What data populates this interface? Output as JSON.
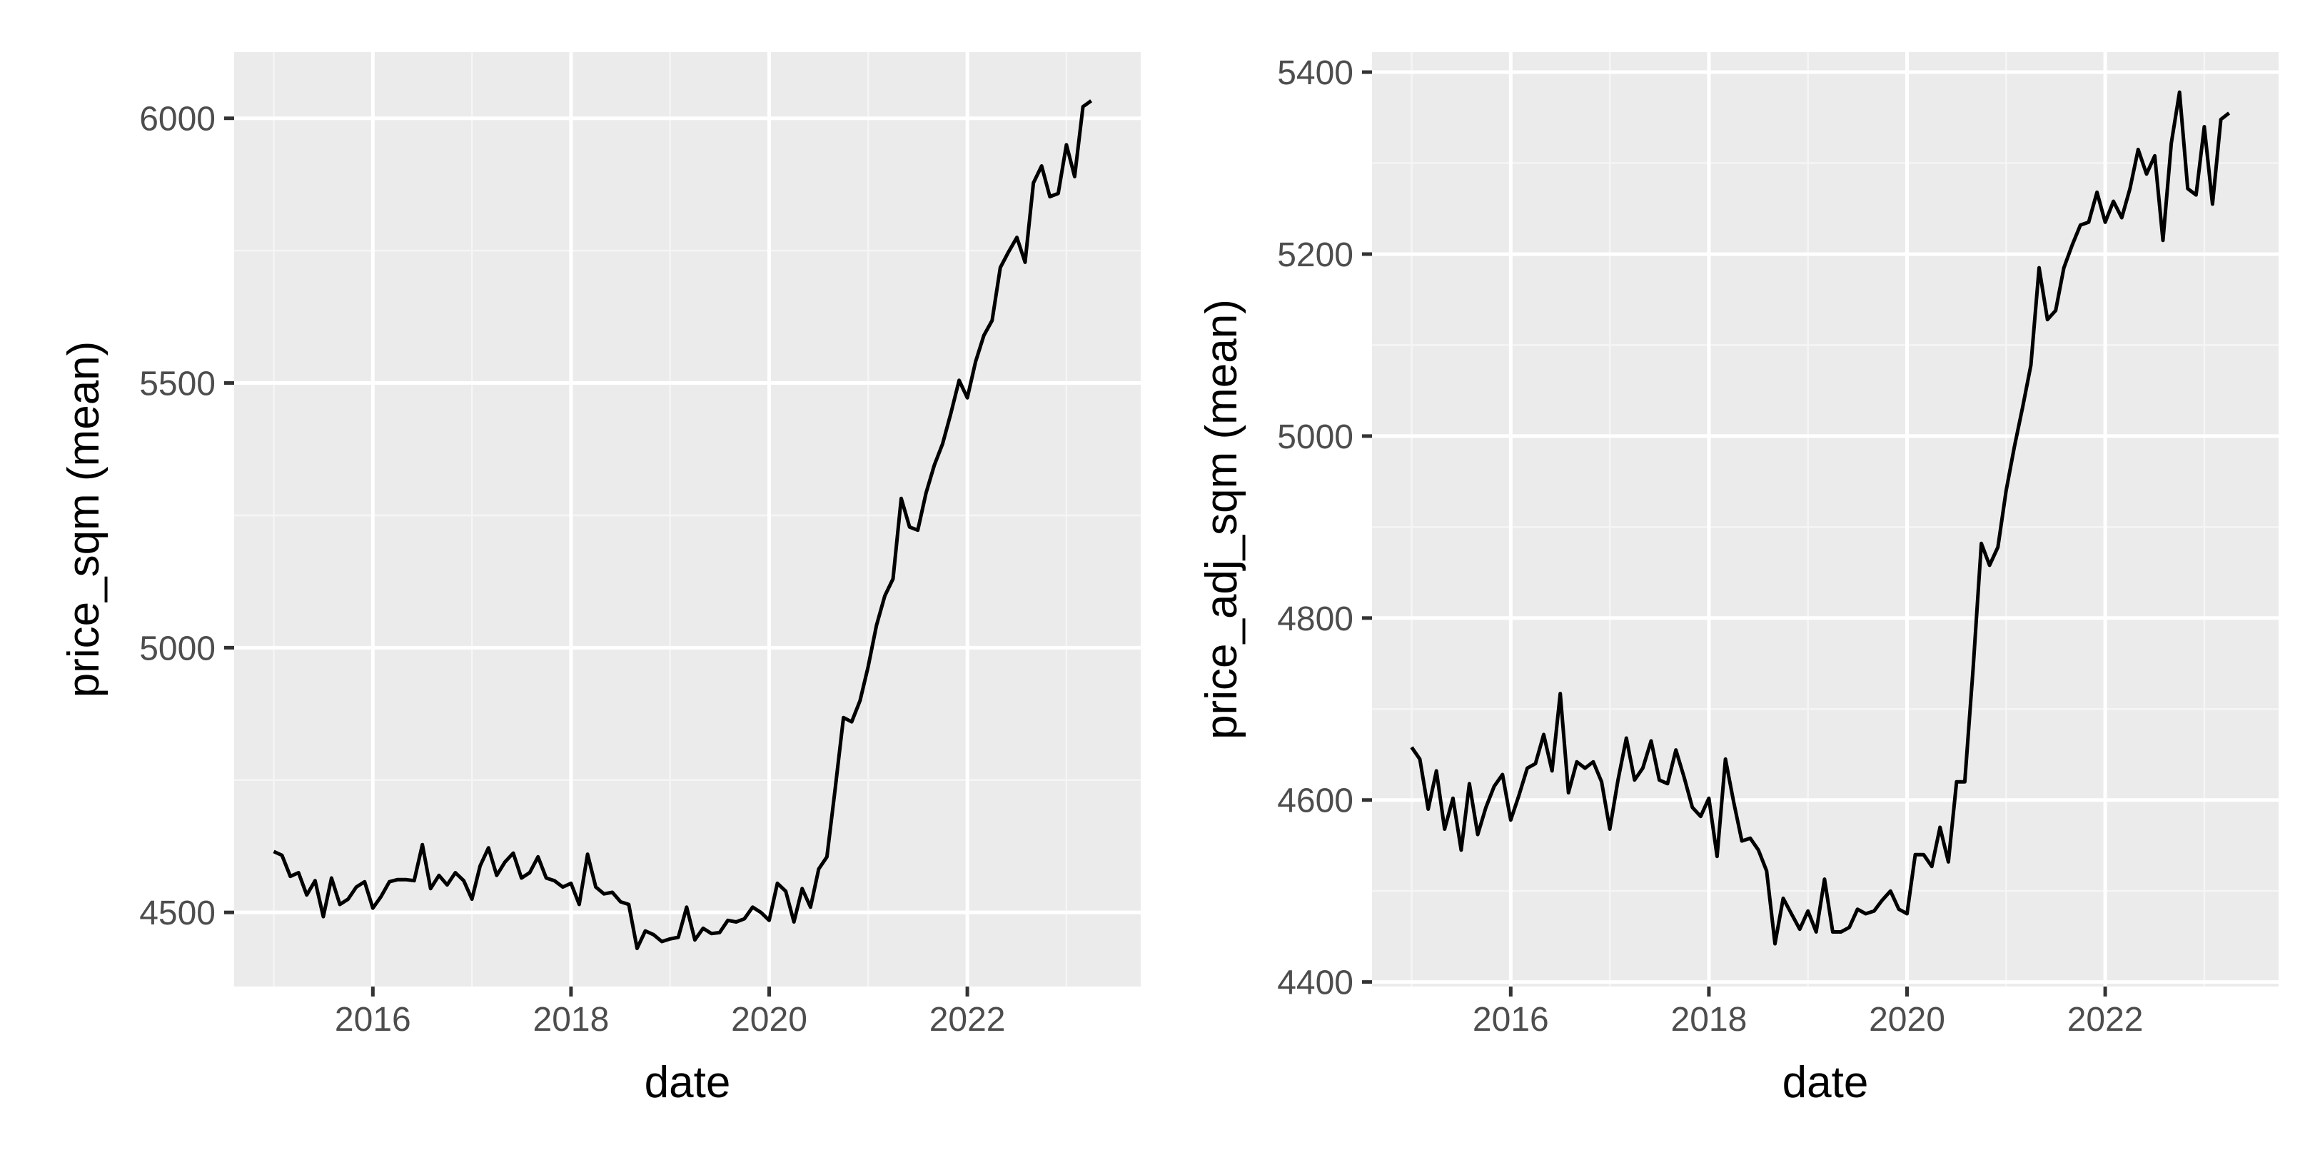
{
  "colors": {
    "panel_background": "#ebebeb",
    "grid_major": "#ffffff",
    "grid_minor": "#f5f5f5",
    "line": "#000000",
    "tick_text": "#4d4d4d",
    "axis_title": "#000000"
  },
  "chart_data": [
    {
      "type": "line",
      "xlabel": "date",
      "ylabel": "price_sqm (mean)",
      "xlim": [
        2014.6,
        2023.75
      ],
      "ylim": [
        4360,
        6125
      ],
      "x_ticks": [
        2016,
        2018,
        2020,
        2022
      ],
      "x_tick_labels": [
        "2016",
        "2018",
        "2020",
        "2022"
      ],
      "y_ticks": [
        4500,
        5000,
        5500,
        6000
      ],
      "y_tick_labels": [
        "4500",
        "5000",
        "5500",
        "6000"
      ],
      "grid": true,
      "series": [
        {
          "x": [
            2015.0,
            2015.083,
            2015.167,
            2015.25,
            2015.333,
            2015.417,
            2015.5,
            2015.583,
            2015.667,
            2015.75,
            2015.833,
            2015.917,
            2016.0,
            2016.083,
            2016.167,
            2016.25,
            2016.333,
            2016.417,
            2016.5,
            2016.583,
            2016.667,
            2016.75,
            2016.833,
            2016.917,
            2017.0,
            2017.083,
            2017.167,
            2017.25,
            2017.333,
            2017.417,
            2017.5,
            2017.583,
            2017.667,
            2017.75,
            2017.833,
            2017.917,
            2018.0,
            2018.083,
            2018.167,
            2018.25,
            2018.333,
            2018.417,
            2018.5,
            2018.583,
            2018.667,
            2018.75,
            2018.833,
            2018.917,
            2019.0,
            2019.083,
            2019.167,
            2019.25,
            2019.333,
            2019.417,
            2019.5,
            2019.583,
            2019.667,
            2019.75,
            2019.833,
            2019.917,
            2020.0,
            2020.083,
            2020.167,
            2020.25,
            2020.333,
            2020.417,
            2020.5,
            2020.583,
            2020.667,
            2020.75,
            2020.833,
            2020.917,
            2021.0,
            2021.083,
            2021.167,
            2021.25,
            2021.333,
            2021.417,
            2021.5,
            2021.583,
            2021.667,
            2021.75,
            2021.833,
            2021.917,
            2022.0,
            2022.083,
            2022.167,
            2022.25,
            2022.333,
            2022.417,
            2022.5,
            2022.583,
            2022.667,
            2022.75,
            2022.833,
            2022.917,
            2023.0,
            2023.083,
            2023.167,
            2023.25
          ],
          "y": [
            4615,
            4608,
            4568,
            4575,
            4533,
            4560,
            4492,
            4565,
            4515,
            4525,
            4548,
            4558,
            4508,
            4530,
            4558,
            4562,
            4562,
            4560,
            4628,
            4545,
            4570,
            4552,
            4575,
            4560,
            4525,
            4588,
            4622,
            4570,
            4595,
            4612,
            4565,
            4575,
            4605,
            4565,
            4560,
            4548,
            4555,
            4515,
            4610,
            4548,
            4535,
            4538,
            4520,
            4515,
            4432,
            4465,
            4458,
            4445,
            4450,
            4453,
            4510,
            4448,
            4470,
            4460,
            4462,
            4485,
            4482,
            4488,
            4510,
            4500,
            4485,
            4555,
            4540,
            4482,
            4545,
            4510,
            4582,
            4605,
            4735,
            4868,
            4860,
            4900,
            4965,
            5042,
            5098,
            5130,
            5282,
            5228,
            5222,
            5292,
            5345,
            5385,
            5442,
            5505,
            5472,
            5540,
            5590,
            5618,
            5718,
            5748,
            5775,
            5728,
            5878,
            5910,
            5852,
            5858,
            5950,
            5890,
            6022,
            6033
          ]
        }
      ]
    },
    {
      "type": "line",
      "xlabel": "date",
      "ylabel": "price_adj_sqm (mean)",
      "xlim": [
        2014.6,
        2023.75
      ],
      "ylim": [
        4395,
        5422
      ],
      "x_ticks": [
        2016,
        2018,
        2020,
        2022
      ],
      "x_tick_labels": [
        "2016",
        "2018",
        "2020",
        "2022"
      ],
      "y_ticks": [
        4400,
        4600,
        4800,
        5000,
        5200,
        5400
      ],
      "y_tick_labels": [
        "4400",
        "4600",
        "4800",
        "5000",
        "5200",
        "5400"
      ],
      "grid": true,
      "series": [
        {
          "x": [
            2015.0,
            2015.083,
            2015.167,
            2015.25,
            2015.333,
            2015.417,
            2015.5,
            2015.583,
            2015.667,
            2015.75,
            2015.833,
            2015.917,
            2016.0,
            2016.083,
            2016.167,
            2016.25,
            2016.333,
            2016.417,
            2016.5,
            2016.583,
            2016.667,
            2016.75,
            2016.833,
            2016.917,
            2017.0,
            2017.083,
            2017.167,
            2017.25,
            2017.333,
            2017.417,
            2017.5,
            2017.583,
            2017.667,
            2017.75,
            2017.833,
            2017.917,
            2018.0,
            2018.083,
            2018.167,
            2018.25,
            2018.333,
            2018.417,
            2018.5,
            2018.583,
            2018.667,
            2018.75,
            2018.833,
            2018.917,
            2019.0,
            2019.083,
            2019.167,
            2019.25,
            2019.333,
            2019.417,
            2019.5,
            2019.583,
            2019.667,
            2019.75,
            2019.833,
            2019.917,
            2020.0,
            2020.083,
            2020.167,
            2020.25,
            2020.333,
            2020.417,
            2020.5,
            2020.583,
            2020.667,
            2020.75,
            2020.833,
            2020.917,
            2021.0,
            2021.083,
            2021.167,
            2021.25,
            2021.333,
            2021.417,
            2021.5,
            2021.583,
            2021.667,
            2021.75,
            2021.833,
            2021.917,
            2022.0,
            2022.083,
            2022.167,
            2022.25,
            2022.333,
            2022.417,
            2022.5,
            2022.583,
            2022.667,
            2022.75,
            2022.833,
            2022.917,
            2023.0,
            2023.083,
            2023.167,
            2023.25
          ],
          "y": [
            4658,
            4645,
            4590,
            4632,
            4568,
            4602,
            4545,
            4618,
            4562,
            4592,
            4615,
            4628,
            4578,
            4605,
            4635,
            4640,
            4672,
            4632,
            4717,
            4608,
            4642,
            4635,
            4642,
            4620,
            4568,
            4622,
            4668,
            4622,
            4635,
            4665,
            4622,
            4618,
            4655,
            4625,
            4592,
            4582,
            4602,
            4538,
            4645,
            4598,
            4555,
            4558,
            4545,
            4522,
            4442,
            4492,
            4475,
            4458,
            4478,
            4455,
            4513,
            4455,
            4455,
            4460,
            4480,
            4475,
            4478,
            4490,
            4500,
            4480,
            4475,
            4540,
            4540,
            4527,
            4570,
            4532,
            4620,
            4620,
            4745,
            4882,
            4858,
            4878,
            4940,
            4988,
            5032,
            5078,
            5185,
            5128,
            5138,
            5185,
            5210,
            5232,
            5235,
            5268,
            5235,
            5258,
            5240,
            5272,
            5315,
            5288,
            5308,
            5215,
            5322,
            5378,
            5272,
            5265,
            5340,
            5255,
            5348,
            5355
          ]
        }
      ]
    }
  ]
}
